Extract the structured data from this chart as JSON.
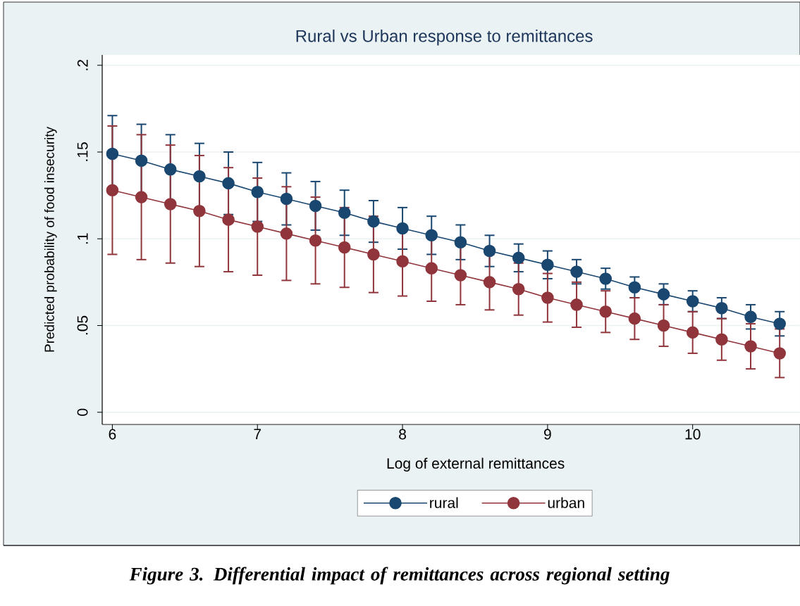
{
  "chart_data": {
    "type": "line",
    "title": "Rural vs Urban response to remittances",
    "xlabel": "Log of external remittances",
    "ylabel": "Predicted probability of food insecurity",
    "x": [
      6,
      6.2,
      6.4,
      6.6,
      6.8,
      7,
      7.2,
      7.4,
      7.6,
      7.8,
      8,
      8.2,
      8.4,
      8.6,
      8.8,
      9,
      9.2,
      9.4,
      9.6,
      9.8,
      10,
      10.2,
      10.4,
      10.6
    ],
    "series": [
      {
        "name": "rural",
        "color": "#1a476f",
        "values": [
          0.149,
          0.145,
          0.14,
          0.136,
          0.132,
          0.127,
          0.123,
          0.119,
          0.115,
          0.11,
          0.106,
          0.102,
          0.098,
          0.093,
          0.089,
          0.085,
          0.081,
          0.077,
          0.072,
          0.068,
          0.064,
          0.06,
          0.055,
          0.051
        ],
        "errors": [
          0.022,
          0.021,
          0.02,
          0.019,
          0.018,
          0.017,
          0.015,
          0.014,
          0.013,
          0.012,
          0.012,
          0.011,
          0.01,
          0.009,
          0.008,
          0.008,
          0.007,
          0.006,
          0.006,
          0.006,
          0.006,
          0.006,
          0.007,
          0.007
        ]
      },
      {
        "name": "urban",
        "color": "#90353b",
        "values": [
          0.128,
          0.124,
          0.12,
          0.116,
          0.111,
          0.107,
          0.103,
          0.099,
          0.095,
          0.091,
          0.087,
          0.083,
          0.079,
          0.075,
          0.071,
          0.066,
          0.062,
          0.058,
          0.054,
          0.05,
          0.046,
          0.042,
          0.038,
          0.034
        ],
        "errors": [
          0.037,
          0.036,
          0.034,
          0.032,
          0.03,
          0.028,
          0.027,
          0.025,
          0.023,
          0.022,
          0.02,
          0.019,
          0.017,
          0.016,
          0.015,
          0.014,
          0.013,
          0.012,
          0.012,
          0.012,
          0.012,
          0.012,
          0.013,
          0.014
        ]
      }
    ],
    "xlim": [
      5.93,
      10.74
    ],
    "ylim": [
      -0.007,
      0.206
    ],
    "xticks": [
      6,
      7,
      8,
      9,
      10
    ],
    "yticks": [
      0,
      {
        "value": 0.05,
        "label": ".05"
      },
      {
        "value": 0.1,
        "label": ".1"
      },
      {
        "value": 0.15,
        "label": ".15"
      },
      {
        "value": 0.2,
        "label": ".2"
      }
    ],
    "grid": "y",
    "legend": "bottom",
    "marker": "circle",
    "line_style": "solid",
    "annotations": [
      "Figure 3. Differential impact of remittances across regional setting"
    ]
  }
}
